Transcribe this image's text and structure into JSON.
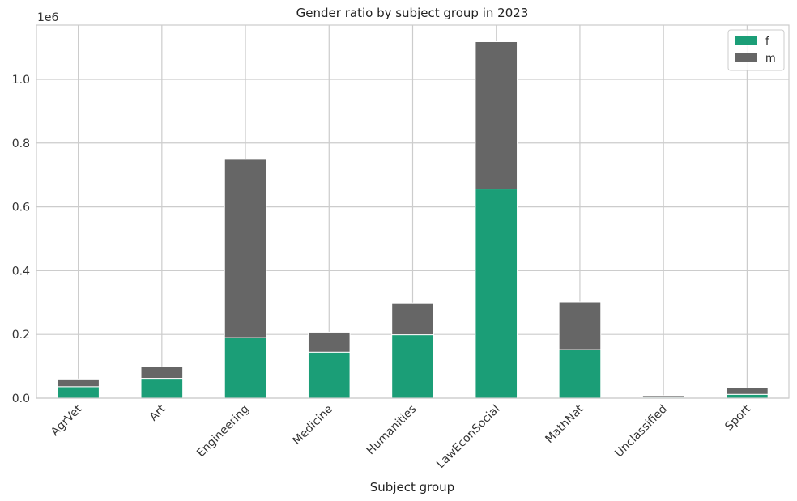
{
  "chart_data": {
    "type": "bar",
    "stacked": true,
    "title": "Gender ratio by subject group in 2023",
    "xlabel": "Subject group",
    "ylabel": "",
    "y_offset_text": "1e6",
    "ylim": [
      0,
      1.17
    ],
    "yticks": [
      0.0,
      0.2,
      0.4,
      0.6,
      0.8,
      1.0
    ],
    "ytick_labels": [
      "0.0",
      "0.2",
      "0.4",
      "0.6",
      "0.8",
      "1.0"
    ],
    "categories": [
      "AgrVet",
      "Art",
      "Engineering",
      "Medicine",
      "Humanities",
      "LawEconSocial",
      "MathNat",
      "Unclassified",
      "Sport"
    ],
    "series": [
      {
        "name": "f",
        "color": "#1b9e77",
        "values": [
          0.036,
          0.062,
          0.19,
          0.144,
          0.199,
          0.656,
          0.152,
          0.003,
          0.012
        ]
      },
      {
        "name": "m",
        "color": "#666666",
        "values": [
          0.024,
          0.036,
          0.559,
          0.063,
          0.1,
          0.462,
          0.15,
          0.005,
          0.02
        ]
      }
    ],
    "grid": true,
    "legend_position": "top-right"
  }
}
